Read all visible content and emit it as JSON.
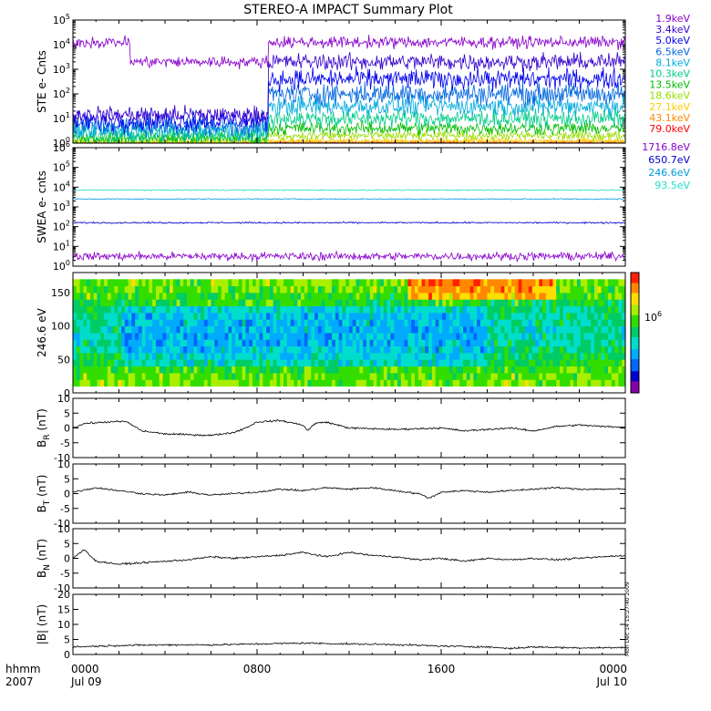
{
  "title": "STEREO-A IMPACT Summary Plot",
  "stamp": "Mon Dec 14 15:27:40 2009",
  "x_axis": {
    "label_line1": "hhmm",
    "label_line2": "2007",
    "ticks": [
      {
        "hours": 0,
        "label": "0000",
        "sublabel": "Jul 09"
      },
      {
        "hours": 8,
        "label": "0800",
        "sublabel": ""
      },
      {
        "hours": 16,
        "label": "1600",
        "sublabel": ""
      },
      {
        "hours": 24,
        "label": "0000",
        "sublabel": "Jul 10"
      }
    ],
    "range_hours": [
      0,
      24
    ]
  },
  "chart_data": [
    {
      "type": "line",
      "id": "ste",
      "ylabel": "STE e- Cnts",
      "yscale": "log",
      "ylim": [
        1,
        100000
      ],
      "ytick_exponents": [
        0,
        1,
        2,
        3,
        4,
        5
      ],
      "x_units": "hours since 2007-07-09 0000",
      "series": [
        {
          "name": "1.9keV",
          "color": "#8800cc",
          "level": 4.1,
          "noise": 0.35
        },
        {
          "name": "3.4keV",
          "color": "#3300cc",
          "level": 3.3,
          "noise": 0.5
        },
        {
          "name": "5.0keV",
          "color": "#0000ee",
          "level": 2.6,
          "noise": 0.6
        },
        {
          "name": "6.5keV",
          "color": "#0066dd",
          "level": 2.0,
          "noise": 0.65
        },
        {
          "name": "8.1keV",
          "color": "#00aadd",
          "level": 1.5,
          "noise": 0.6
        },
        {
          "name": "10.3keV",
          "color": "#00cc88",
          "level": 1.0,
          "noise": 0.55
        },
        {
          "name": "13.5keV",
          "color": "#00bb00",
          "level": 0.6,
          "noise": 0.4
        },
        {
          "name": "18.6keV",
          "color": "#99dd00",
          "level": 0.3,
          "noise": 0.3
        },
        {
          "name": "27.1keV",
          "color": "#ffcc00",
          "level": 0.1,
          "noise": 0.15
        },
        {
          "name": "43.1keV",
          "color": "#ff8800",
          "level": 0.05,
          "noise": 0.1
        },
        {
          "name": "79.0keV",
          "color": "#ff0000",
          "level": 0.02,
          "noise": 0.05
        }
      ]
    },
    {
      "type": "line",
      "id": "swea",
      "ylabel": "SWEA e- cnts",
      "yscale": "log",
      "ylim": [
        1,
        1000000
      ],
      "ytick_exponents": [
        0,
        1,
        2,
        3,
        4,
        5,
        6
      ],
      "x_units": "hours since 2007-07-09 0000",
      "series": [
        {
          "name": "1716.8eV",
          "color": "#8800cc",
          "level": 0.5,
          "noise": 0.3
        },
        {
          "name": "650.7eV",
          "color": "#0000cc",
          "level": 2.2,
          "noise": 0.06
        },
        {
          "name": "246.6eV",
          "color": "#0099dd",
          "level": 3.4,
          "noise": 0.04
        },
        {
          "name": "93.5eV",
          "color": "#22ddcc",
          "level": 3.85,
          "noise": 0.04
        }
      ]
    },
    {
      "type": "heatmap",
      "id": "pad",
      "ylabel": "246.6 eV",
      "ylim": [
        0,
        180
      ],
      "yticks": [
        0,
        50,
        100,
        150
      ],
      "data_range_y": [
        10,
        170
      ],
      "colorbar_label": "10^6",
      "x_units": "hours since 2007-07-09 0000"
    },
    {
      "type": "line",
      "id": "br",
      "ylabel_main": "B",
      "ylabel_sub": "R",
      "ylabel_unit": " (nT)",
      "ylim": [
        -10,
        10
      ],
      "yticks": [
        -10,
        -5,
        0,
        5,
        10
      ],
      "x_units": "hours since 2007-07-09 0000",
      "keypoints": [
        [
          0,
          0
        ],
        [
          0.5,
          1.5
        ],
        [
          1.5,
          2
        ],
        [
          2.3,
          2.2
        ],
        [
          3,
          -1
        ],
        [
          4,
          -2
        ],
        [
          6,
          -2.5
        ],
        [
          7,
          -1.5
        ],
        [
          7.5,
          0
        ],
        [
          8,
          2
        ],
        [
          9,
          2.5
        ],
        [
          10,
          1
        ],
        [
          10.2,
          -1
        ],
        [
          10.5,
          1.5
        ],
        [
          11,
          2
        ],
        [
          12,
          0
        ],
        [
          14,
          -0.5
        ],
        [
          16,
          0
        ],
        [
          17,
          -1
        ],
        [
          18,
          -0.5
        ],
        [
          19,
          0
        ],
        [
          20,
          -1
        ],
        [
          21,
          0.5
        ],
        [
          22,
          1
        ],
        [
          23,
          0.5
        ],
        [
          24,
          0.3
        ]
      ]
    },
    {
      "type": "line",
      "id": "bt",
      "ylabel_main": "B",
      "ylabel_sub": "T",
      "ylabel_unit": " (nT)",
      "ylim": [
        -10,
        10
      ],
      "yticks": [
        -10,
        -5,
        0,
        5,
        10
      ],
      "x_units": "hours since 2007-07-09 0000",
      "keypoints": [
        [
          0,
          0.5
        ],
        [
          1,
          2
        ],
        [
          2,
          1
        ],
        [
          3,
          0
        ],
        [
          4,
          -0.5
        ],
        [
          5,
          0.5
        ],
        [
          6,
          -0.5
        ],
        [
          7,
          0
        ],
        [
          8,
          0.5
        ],
        [
          9,
          1.5
        ],
        [
          10,
          1
        ],
        [
          11,
          2
        ],
        [
          12,
          1.5
        ],
        [
          13,
          2
        ],
        [
          14,
          1
        ],
        [
          15,
          0
        ],
        [
          15.5,
          -1.5
        ],
        [
          16,
          0.5
        ],
        [
          17,
          1
        ],
        [
          18,
          0.5
        ],
        [
          19,
          1
        ],
        [
          20,
          1.5
        ],
        [
          21,
          2
        ],
        [
          22,
          1.5
        ],
        [
          23,
          1.5
        ],
        [
          24,
          1.5
        ]
      ]
    },
    {
      "type": "line",
      "id": "bn",
      "ylabel_main": "B",
      "ylabel_sub": "N",
      "ylabel_unit": " (nT)",
      "ylim": [
        -10,
        10
      ],
      "yticks": [
        -10,
        -5,
        0,
        5,
        10
      ],
      "x_units": "hours since 2007-07-09 0000",
      "keypoints": [
        [
          0,
          0
        ],
        [
          0.5,
          3
        ],
        [
          1,
          -1
        ],
        [
          2,
          -2
        ],
        [
          3,
          -1.5
        ],
        [
          4,
          -1
        ],
        [
          5,
          -0.5
        ],
        [
          6,
          0.5
        ],
        [
          7,
          0
        ],
        [
          8,
          0.5
        ],
        [
          9,
          1
        ],
        [
          10,
          2
        ],
        [
          11,
          0.5
        ],
        [
          12,
          2
        ],
        [
          13,
          1
        ],
        [
          14,
          0.5
        ],
        [
          15,
          -0.5
        ],
        [
          16,
          0
        ],
        [
          17,
          -1
        ],
        [
          18,
          0
        ],
        [
          19,
          -0.5
        ],
        [
          20,
          0
        ],
        [
          21,
          -0.5
        ],
        [
          22,
          0
        ],
        [
          23,
          0.5
        ],
        [
          24,
          1
        ]
      ]
    },
    {
      "type": "line",
      "id": "bmag",
      "ylabel_main": "|B| (nT)",
      "ylabel_sub": "",
      "ylabel_unit": "",
      "ylim": [
        0,
        20
      ],
      "yticks": [
        0,
        5,
        10,
        15,
        20
      ],
      "x_units": "hours since 2007-07-09 0000",
      "keypoints": [
        [
          0,
          2.5
        ],
        [
          2,
          3
        ],
        [
          4,
          3.2
        ],
        [
          6,
          3.2
        ],
        [
          8,
          3.5
        ],
        [
          10,
          3.8
        ],
        [
          12,
          3.5
        ],
        [
          14,
          3.3
        ],
        [
          16,
          2.8
        ],
        [
          18,
          2.5
        ],
        [
          19,
          2
        ],
        [
          20,
          2.5
        ],
        [
          22,
          2.2
        ],
        [
          24,
          2.3
        ]
      ]
    }
  ]
}
